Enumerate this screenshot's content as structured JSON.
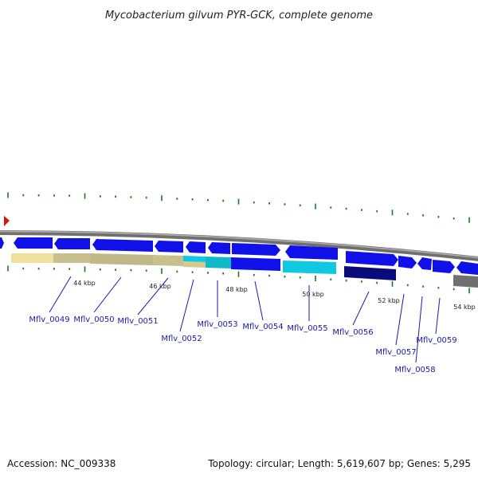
{
  "title": "Mycobacterium gilvum PYR-GCK, complete genome",
  "footer": {
    "accession": "Accession: NC_009338",
    "summary": "Topology: circular; Length: 5,619,607 bp; Genes: 5,295"
  },
  "ticks": [
    "44 kbp",
    "46 kbp",
    "48 kbp",
    "50 kbp",
    "52 kbp",
    "54 kbp"
  ],
  "genes": [
    "Mflv_0049",
    "Mflv_0050",
    "Mflv_0051",
    "Mflv_0052",
    "Mflv_0053",
    "Mflv_0054",
    "Mflv_0055",
    "Mflv_0056",
    "Mflv_0057",
    "Mflv_0058",
    "Mflv_0059"
  ],
  "colors": {
    "backbone": "#8a8a8a",
    "gene_blue": "#1010e8",
    "gene_navy": "#0a0a7a",
    "gene_cyan": "#10c8e0",
    "gene_gray": "#707070",
    "feature_tan": "#f0e0a0",
    "feature_olive": "#c8c08c",
    "tick_green": "#1a7a1a",
    "marker_red": "#e01010",
    "label_blue": "#1a1aa8"
  }
}
